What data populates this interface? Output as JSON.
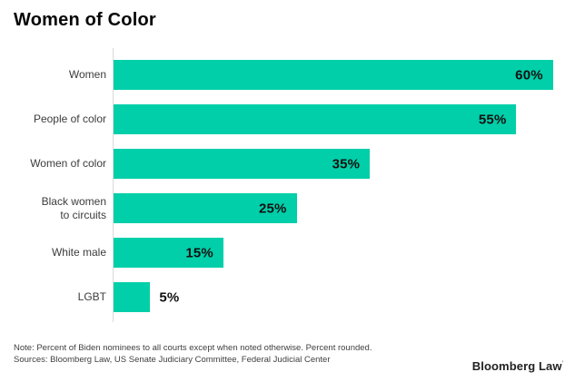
{
  "title": "Women of Color",
  "accent_color": "#00CFA9",
  "chart_data": {
    "type": "bar",
    "orientation": "horizontal",
    "title": "Women of Color",
    "categories": [
      "Women",
      "People of color",
      "Women of color",
      "Black women\nto circuits",
      "White male",
      "LGBT"
    ],
    "values": [
      60,
      55,
      35,
      25,
      15,
      5
    ],
    "value_labels": [
      "60%",
      "55%",
      "35%",
      "25%",
      "15%",
      "5%"
    ],
    "xlabel": "",
    "ylabel": "",
    "xlim": [
      0,
      63
    ],
    "grid": false,
    "legend": false,
    "bar_color": "#00CFA9",
    "value_label_placement": "inside bar end, except 5% outside bar"
  },
  "footer": {
    "note": "Note: Percent of Biden nominees to all courts except when noted otherwise. Percent rounded.",
    "sources": "Sources: Bloomberg Law, US Senate Judiciary Committee, Federal Judicial Center"
  },
  "branding": {
    "logo_text": "Bloomberg Law",
    "logo_mark": "′"
  }
}
